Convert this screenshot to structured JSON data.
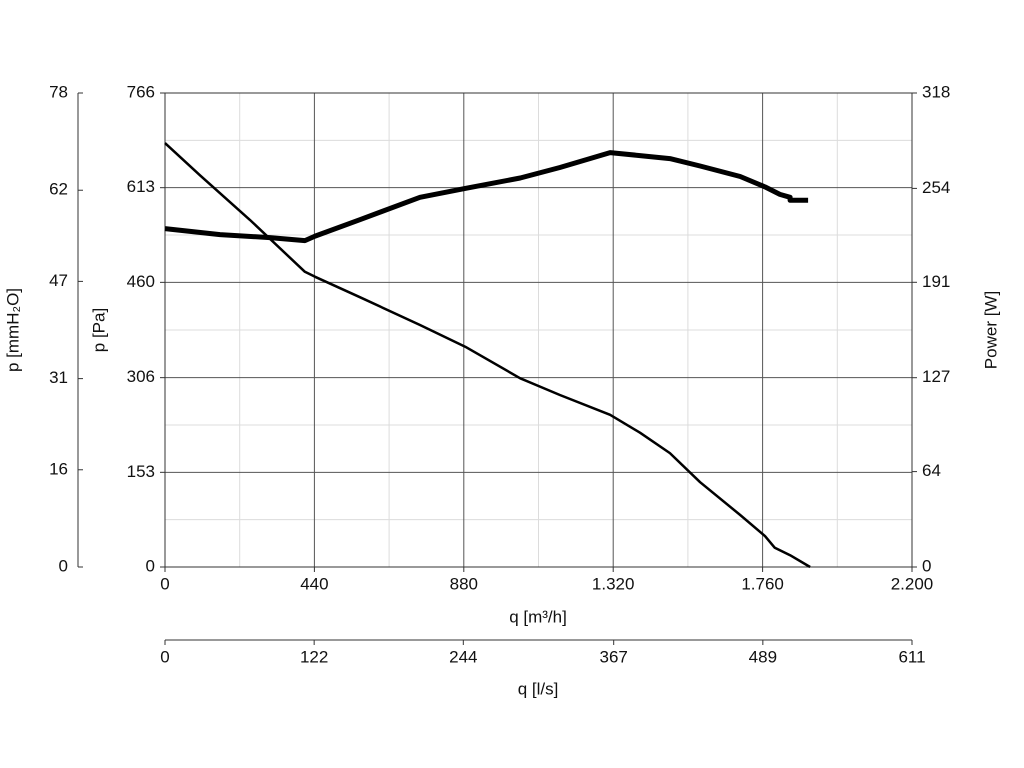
{
  "chart_data": {
    "type": "line",
    "xlim": [
      0,
      2200
    ],
    "xticks": [
      0,
      440,
      880,
      {
        "value": 1320,
        "label": "1.320"
      },
      {
        "value": 1760,
        "label": "1.760"
      },
      {
        "value": 2200,
        "label": "2.200"
      }
    ],
    "x_label": "q [m³/h]",
    "x2lim": [
      0,
      611
    ],
    "x2ticks": [
      0,
      122,
      244,
      367,
      489,
      611
    ],
    "x2_label": "q [l/s]",
    "ylim": [
      0,
      766
    ],
    "yticks": [
      0,
      153,
      306,
      460,
      613,
      766
    ],
    "y_label": "p [Pa]",
    "y3lim": [
      0,
      78
    ],
    "y3ticks": [
      0,
      16,
      31,
      47,
      62,
      78
    ],
    "y3_label": "p [mmH₂O]",
    "y2lim": [
      0,
      318
    ],
    "y2ticks": [
      0,
      64,
      127,
      191,
      254,
      318
    ],
    "y2_label": "Power [W]",
    "grid": true,
    "series": [
      {
        "color": "#000000",
        "width": 2.5,
        "x": [
          0,
          103,
          250,
          412,
          442,
          574,
          751,
          884,
          1046,
          1163,
          1311,
          1399,
          1487,
          1576,
          1694,
          1767,
          1796,
          1841,
          1900
        ],
        "values": [
          685,
          633,
          561,
          477,
          469,
          436,
          391,
          356,
          305,
          278,
          246,
          217,
          184,
          137,
          84,
          50,
          31,
          19,
          0
        ]
      },
      {
        "color": "#000000",
        "width": 5,
        "axis": "y2",
        "x": [
          0,
          162,
          309,
          412,
          442,
          574,
          751,
          884,
          1046,
          1163,
          1311,
          1399,
          1487,
          1576,
          1694,
          1767,
          1811,
          1841,
          1841,
          1894
        ],
        "values": [
          227,
          223,
          221,
          219,
          222,
          233,
          248,
          254,
          261,
          268,
          278,
          276,
          274,
          269,
          262,
          255,
          250,
          248,
          246,
          246
        ]
      }
    ]
  }
}
